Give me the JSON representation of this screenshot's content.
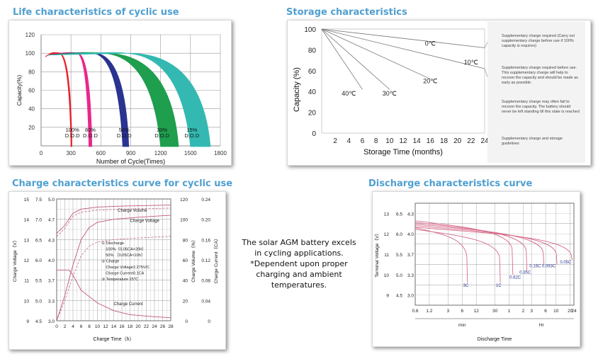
{
  "titles": {
    "life": "Life characteristics of cyclic use",
    "storage": "Storage characteristics",
    "charge": "Charge characteristics curve for cyclic use",
    "discharge": "Discharge characteristics curve"
  },
  "center_note": {
    "line1": "The solar AGM battery excels",
    "line2": "in cycling applications.",
    "line3": "*Dependent upon proper",
    "line4": "charging and ambient",
    "line5": "temperatures."
  },
  "storage_notes": [
    "Supplementary charge required (Carry out supplementary charge before use if 100% capacity is requires)",
    "Supplementary charge required before use. This supplementary charge will help to recover the capacity and should be made as early as possible.",
    "Supplementary charge may often fail to recover the capacity. The battery should never be left standing till this state is reached",
    "Supplementary charge and storage guidelines"
  ],
  "colors": {
    "red": "#e8202a",
    "magenta": "#e8288c",
    "navy": "#2a3390",
    "green": "#1f9e4e",
    "teal": "#33b9b2",
    "title": "#4f9fd0"
  },
  "chart_data": [
    {
      "id": "life",
      "type": "area",
      "title": "Life characteristics of cyclic use",
      "xlabel": "Number of Cycle(Times)",
      "ylabel": "Capacity(%)",
      "xlim": [
        0,
        1800
      ],
      "ylim": [
        0,
        120
      ],
      "xticks": [
        "0",
        "300",
        "600",
        "900",
        "1200",
        "1500",
        "1800"
      ],
      "yticks": [
        "20",
        "40",
        "60",
        "80",
        "100",
        "120"
      ],
      "series": [
        {
          "name": "100% D.O.D",
          "label_top": "100%",
          "label_bot": "D.O.D",
          "color": "red",
          "start": 180,
          "end": [
            300,
            310
          ],
          "peak": 100
        },
        {
          "name": "80% D.O.D",
          "label_top": "80%",
          "label_bot": "D.O.D",
          "color": "magenta",
          "start": 360,
          "end": [
            480,
            510
          ],
          "peak": 100
        },
        {
          "name": "50% D.O.D",
          "label_top": "50%",
          "label_bot": "D.O.D",
          "color": "navy",
          "start": 520,
          "end": [
            820,
            880
          ],
          "peak": 100
        },
        {
          "name": "30% D.O.D",
          "label_top": "30%",
          "label_bot": "D.O.D",
          "color": "green",
          "start": 620,
          "end": [
            1200,
            1380
          ],
          "peak": 100
        },
        {
          "name": "15% D.O.D",
          "label_top": "15%",
          "label_bot": "D.O.D",
          "color": "teal",
          "start": 850,
          "end": [
            1500,
            1700
          ],
          "peak": 100
        }
      ]
    },
    {
      "id": "storage",
      "type": "line",
      "title": "Storage characteristics",
      "xlabel": "Storage Time (months)",
      "ylabel": "Capacity  (%)",
      "xlim": [
        0,
        24
      ],
      "ylim": [
        0,
        100
      ],
      "xticks": [
        "2",
        "4",
        "6",
        "8",
        "10",
        "12",
        "14",
        "16",
        "18",
        "20",
        "22",
        "24"
      ],
      "yticks": [
        "0",
        "20",
        "40",
        "60",
        "80",
        "100"
      ],
      "series": [
        {
          "name": "0℃",
          "x": [
            0,
            24
          ],
          "y": [
            100,
            82
          ]
        },
        {
          "name": "10℃",
          "x": [
            0,
            24
          ],
          "y": [
            100,
            62
          ]
        },
        {
          "name": "20℃",
          "x": [
            0,
            16
          ],
          "y": [
            100,
            52
          ]
        },
        {
          "name": "30℃",
          "x": [
            0,
            10
          ],
          "y": [
            100,
            42
          ]
        },
        {
          "name": "40℃",
          "x": [
            0,
            6
          ],
          "y": [
            100,
            42
          ]
        }
      ]
    },
    {
      "id": "charge",
      "type": "line",
      "title": "Charge characteristics curve for cyclic use",
      "xlabel": "Charge Time（h）",
      "ylabel_left1": "Charge Voltage（V）",
      "ylabel_right1": "Charge Volume（%）",
      "ylabel_right2": "Charge Current（CA）",
      "xlim": [
        0,
        28
      ],
      "xticks": [
        "0",
        "2",
        "4",
        "6",
        "8",
        "10",
        "12",
        "14",
        "16",
        "18",
        "20",
        "22",
        "24",
        "26",
        "28"
      ],
      "yticks_12v": [
        "15",
        "14",
        "13",
        "12",
        "11",
        "10",
        "9"
      ],
      "yticks_6v": [
        "7.5",
        "7.0",
        "6.5",
        "6.0",
        "5.5",
        "5.0",
        "4.5"
      ],
      "yticks_cell": [
        "5.0",
        "4.7",
        "4.3",
        "4.0",
        "3.7",
        "3.3",
        "3.0"
      ],
      "yticks_volume": [
        "120",
        "100",
        "80",
        "60",
        "40",
        "20",
        "0"
      ],
      "yticks_current": [
        "0.24",
        "0.20",
        "0.16",
        "0.12",
        "0.08",
        "0.04",
        "0"
      ],
      "series": [
        {
          "name": "Charge Volume",
          "x": [
            0,
            2,
            4,
            6,
            8,
            10,
            14,
            20,
            28
          ],
          "y": [
            0,
            25,
            55,
            80,
            92,
            97,
            100,
            102,
            104
          ]
        },
        {
          "name": "Charge Voltage",
          "x": [
            0,
            2,
            3,
            4,
            6,
            10,
            16,
            28
          ],
          "y": [
            13.3,
            13.7,
            14.0,
            14.3,
            14.5,
            14.6,
            14.65,
            14.7
          ]
        },
        {
          "name": "Charge Current",
          "x": [
            0,
            3,
            4,
            6,
            10,
            14,
            18,
            24,
            28
          ],
          "y": [
            0.1,
            0.1,
            0.09,
            0.06,
            0.035,
            0.02,
            0.012,
            0.008,
            0.006
          ]
        }
      ],
      "legend": {
        "l1": "①  Discharge",
        "l2": "100%（0.05CA×20h）",
        "l3": "50%  （0.05CA×10h）",
        "l4": "②  Charge",
        "l5": "Charge Voltage2.275V/C",
        "l6": "Charge Current0.1CA",
        "l7": "③  Temperature 25℃"
      },
      "labels": {
        "volume": "Charge Volume",
        "voltage": "Charge Voltage",
        "current": "Charge Current"
      }
    },
    {
      "id": "discharge",
      "type": "line",
      "title": "Discharge characteristics curve",
      "xlabel": "Discharge Time",
      "ylabel": "Terminal Voltage（V）",
      "xticks": [
        "0.6",
        "1.2",
        "3",
        "6",
        "12",
        "30",
        "1",
        "2",
        "3",
        "6",
        "10",
        "20",
        "24"
      ],
      "xunit_min": "min",
      "xunit_hr": "Hr",
      "yticks_12v": [
        "13",
        "12",
        "11",
        "10",
        "9"
      ],
      "yticks_6v": [
        "6.5",
        "6.0",
        "5.5",
        "5.0",
        "4.5"
      ],
      "yticks_cell": [
        "4.3",
        "4.0",
        "3.7",
        "3.3",
        "3.0"
      ],
      "series": [
        {
          "name": "3C",
          "end_hours": 0.13,
          "end_v": 9.6
        },
        {
          "name": "1C",
          "end_hours": 0.65,
          "end_v": 9.6
        },
        {
          "name": "0.62C",
          "end_hours": 1.2,
          "end_v": 10.0
        },
        {
          "name": "0.35C",
          "end_hours": 2.4,
          "end_v": 10.2
        },
        {
          "name": "0.16C",
          "end_hours": 5.5,
          "end_v": 10.5
        },
        {
          "name": "0.093C",
          "end_hours": 10.5,
          "end_v": 10.5
        },
        {
          "name": "0.05C",
          "end_hours": 22,
          "end_v": 10.7
        }
      ]
    }
  ]
}
